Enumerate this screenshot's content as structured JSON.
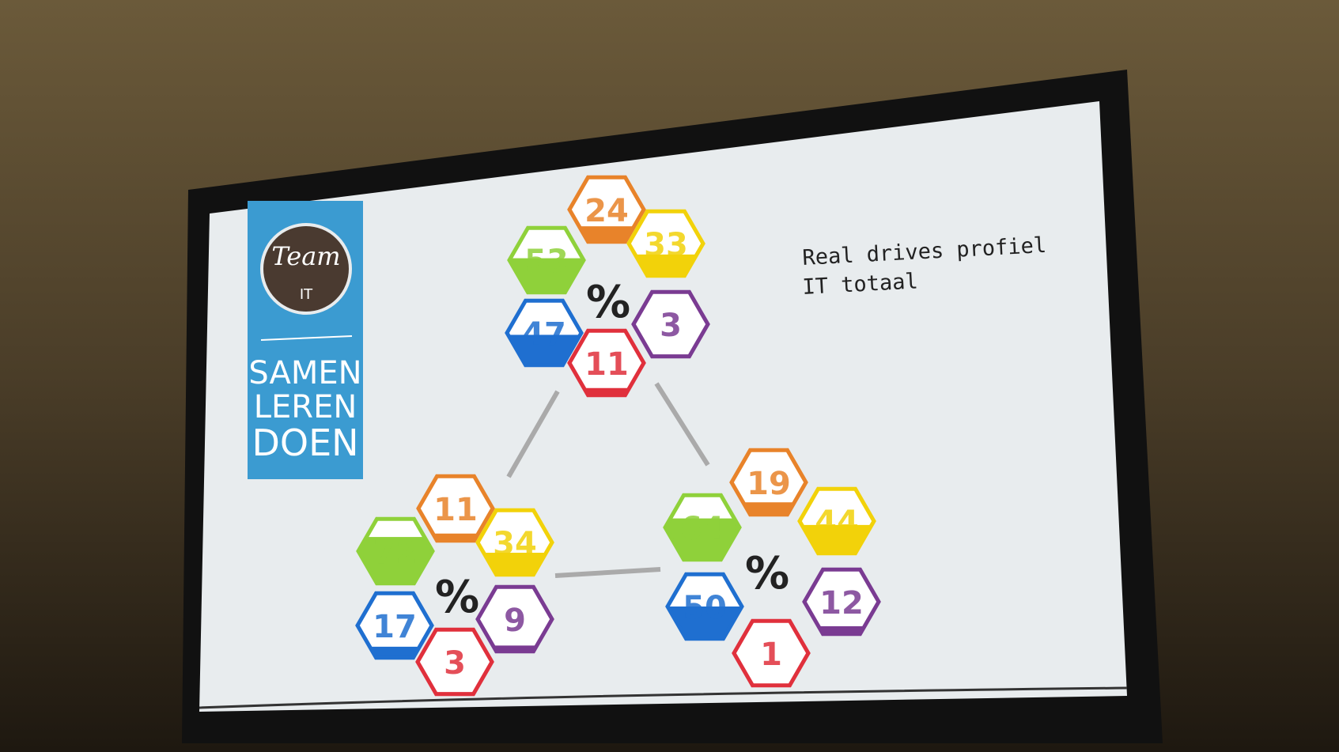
{
  "logo": {
    "team": "Team",
    "unit": "IT",
    "lines": [
      "SAMEN",
      "LEREN",
      "DOEN"
    ]
  },
  "title": [
    "Real drives profiel",
    "IT totaal"
  ],
  "clusters": [
    {
      "symbol": "%",
      "hexes": [
        {
          "color": "#e8832a",
          "value": 24
        },
        {
          "color": "#f2d20a",
          "value": 33
        },
        {
          "color": "#7a3b92",
          "value": 3
        },
        {
          "color": "#e0303c",
          "value": 11
        },
        {
          "color": "#1f6fd0",
          "value": 47
        },
        {
          "color": "#8fd13a",
          "value": 53
        }
      ]
    },
    {
      "symbol": "%",
      "hexes": [
        {
          "color": "#e8832a",
          "value": 11
        },
        {
          "color": "#f2d20a",
          "value": 34
        },
        {
          "color": "#7a3b92",
          "value": 9
        },
        {
          "color": "#e0303c",
          "value": 3
        },
        {
          "color": "#1f6fd0",
          "value": 17
        },
        {
          "color": "#8fd13a",
          "value": 72
        }
      ]
    },
    {
      "symbol": "%",
      "hexes": [
        {
          "color": "#e8832a",
          "value": 19
        },
        {
          "color": "#f2d20a",
          "value": 44
        },
        {
          "color": "#7a3b92",
          "value": 12
        },
        {
          "color": "#e0303c",
          "value": 1
        },
        {
          "color": "#1f6fd0",
          "value": 50
        },
        {
          "color": "#8fd13a",
          "value": 64
        }
      ]
    }
  ]
}
